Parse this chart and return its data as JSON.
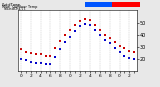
{
  "title_left": "OutdTemp",
  "bg_color": "#e8e8e8",
  "plot_bg": "#ffffff",
  "grid_color": "#aaaaaa",
  "hours": [
    0,
    1,
    2,
    3,
    4,
    5,
    6,
    7,
    8,
    9,
    10,
    11,
    12,
    13,
    14,
    15,
    16,
    17,
    18,
    19,
    20,
    21,
    22,
    23
  ],
  "temp": [
    28,
    26,
    25,
    24,
    24,
    23,
    23,
    29,
    35,
    40,
    44,
    48,
    51,
    53,
    52,
    48,
    44,
    40,
    37,
    34,
    31,
    29,
    27,
    26
  ],
  "windchill": [
    20,
    19,
    18,
    17,
    17,
    16,
    16,
    22,
    28,
    34,
    38,
    43,
    47,
    49,
    48,
    44,
    40,
    36,
    33,
    29,
    26,
    23,
    21,
    20
  ],
  "temp_color": "#cc0000",
  "windchill_color": "#0000cc",
  "marker_size": 1.5,
  "ylim": [
    10,
    60
  ],
  "ytick_vals": [
    20,
    30,
    40,
    50
  ],
  "ytick_labels": [
    "20",
    "30",
    "40",
    "50"
  ],
  "ylabel_fontsize": 3.5,
  "xlabel_fontsize": 3.2,
  "bar_blue": "#0055ff",
  "bar_red": "#ff0000",
  "dpi": 100,
  "xtick_step": 2,
  "xtick_labels": [
    "0",
    "",
    "2",
    "",
    "4",
    "",
    "6",
    "",
    "8",
    "",
    "1",
    "",
    "1",
    "",
    "1",
    "",
    "1",
    "",
    "1",
    "",
    "2",
    "",
    "2",
    "",
    "2"
  ],
  "title_text": "Milw  Outdoor Temp vs Wind Chill (24H)",
  "left_label": "OutdTemp\n WindChill"
}
